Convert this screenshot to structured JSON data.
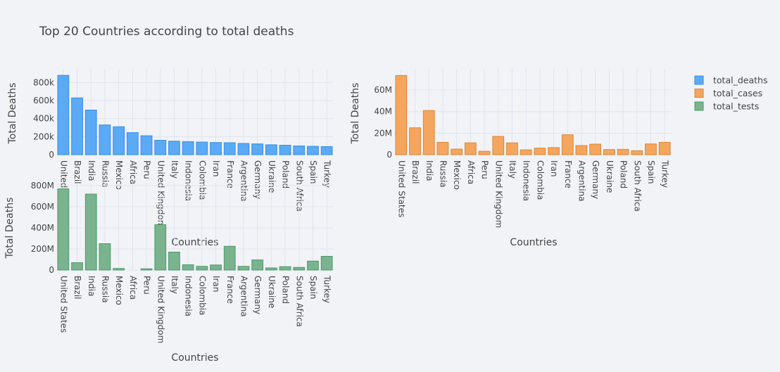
{
  "title": "Top 20 Countries according to total deaths",
  "chart_data": [
    {
      "type": "bar",
      "name": "total_deaths",
      "color": "#5aaaf5",
      "stroke": "#3a8ee6",
      "categories": [
        "United States",
        "Brazil",
        "India",
        "Russia",
        "Mexico",
        "Africa",
        "Peru",
        "United Kingdom",
        "Italy",
        "Indonesia",
        "Colombia",
        "Iran",
        "France",
        "Argentina",
        "Germany",
        "Ukraine",
        "Poland",
        "South Africa",
        "Spain",
        "Turkey"
      ],
      "values": [
        880000,
        630000,
        495000,
        330000,
        310000,
        245000,
        210000,
        160000,
        150000,
        145000,
        140000,
        135000,
        133000,
        125000,
        120000,
        110000,
        105000,
        97000,
        93000,
        90000
      ],
      "ylabel": "Total Deaths",
      "xlabel": "Countries",
      "ylim": [
        0,
        920000
      ],
      "yticks": [
        0,
        200000,
        400000,
        600000,
        800000
      ],
      "ytick_labels": [
        "0",
        "200k",
        "400k",
        "600k",
        "800k"
      ],
      "grid": true
    },
    {
      "type": "bar",
      "name": "total_cases",
      "color": "#f4a55e",
      "stroke": "#d98838",
      "categories": [
        "United States",
        "Brazil",
        "India",
        "Russia",
        "Mexico",
        "Africa",
        "Peru",
        "United Kingdom",
        "Italy",
        "Indonesia",
        "Colombia",
        "Iran",
        "France",
        "Argentina",
        "Germany",
        "Ukraine",
        "Poland",
        "South Africa",
        "Spain",
        "Turkey"
      ],
      "values": [
        73500000,
        25000000,
        41000000,
        11500000,
        5200000,
        11000000,
        3200000,
        17000000,
        11000000,
        4500000,
        6100000,
        6600000,
        18500000,
        8500000,
        9800000,
        4800000,
        5000000,
        3700000,
        10000000,
        11500000
      ],
      "ylabel": "Total Deaths",
      "xlabel": "Countries",
      "ylim": [
        0,
        77000000
      ],
      "yticks": [
        0,
        20000000,
        40000000,
        60000000
      ],
      "ytick_labels": [
        "0",
        "20M",
        "40M",
        "60M"
      ],
      "grid": true
    },
    {
      "type": "bar",
      "name": "total_tests",
      "color": "#79b48e",
      "stroke": "#4f9a6c",
      "categories": [
        "United States",
        "Brazil",
        "India",
        "Russia",
        "Mexico",
        "Africa",
        "Peru",
        "United Kingdom",
        "Italy",
        "Indonesia",
        "Colombia",
        "Iran",
        "France",
        "Argentina",
        "Germany",
        "Ukraine",
        "Poland",
        "South Africa",
        "Spain",
        "Turkey"
      ],
      "values": [
        770000000,
        70000000,
        720000000,
        250000000,
        15000000,
        0,
        12000000,
        430000000,
        170000000,
        50000000,
        35000000,
        48000000,
        225000000,
        35000000,
        96000000,
        20000000,
        32000000,
        25000000,
        85000000,
        130000000
      ],
      "ylabel": "Total Deaths",
      "xlabel": "Countries",
      "ylim": [
        0,
        800000000
      ],
      "yticks": [
        0,
        200000000,
        400000000,
        600000000,
        800000000
      ],
      "ytick_labels": [
        "0",
        "200M",
        "400M",
        "600M",
        "800M"
      ],
      "grid": true
    }
  ],
  "legend": {
    "placement": "top-right",
    "items": [
      {
        "label": "total_deaths",
        "color": "#5aaaf5",
        "stroke": "#3a8ee6"
      },
      {
        "label": "total_cases",
        "color": "#f4a55e",
        "stroke": "#d98838"
      },
      {
        "label": "total_tests",
        "color": "#79b48e",
        "stroke": "#4f9a6c"
      }
    ]
  }
}
